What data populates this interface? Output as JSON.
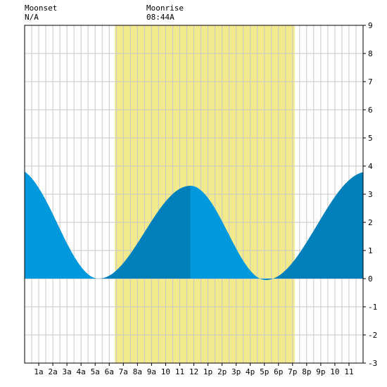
{
  "header": {
    "moonset_label": "Moonset",
    "moonset_value": "N/A",
    "moonrise_label": "Moonrise",
    "moonrise_value": "08:44A"
  },
  "colors": {
    "daylight": "#f2ea8c",
    "tide_light": "#0099dd",
    "tide_dark": "#0080bb",
    "grid": "#c8c8c8",
    "axis": "#000000"
  },
  "chart_data": {
    "type": "area",
    "title": "",
    "xlabel": "",
    "ylabel": "",
    "xlim": [
      0,
      24
    ],
    "ylim": [
      -3,
      9
    ],
    "y_ticks": [
      -3,
      -2,
      -1,
      0,
      1,
      2,
      3,
      4,
      5,
      6,
      7,
      8,
      9
    ],
    "x_tick_hours": [
      1,
      2,
      3,
      4,
      5,
      6,
      7,
      8,
      9,
      10,
      11,
      12,
      13,
      14,
      15,
      16,
      17,
      18,
      19,
      20,
      21,
      22,
      23
    ],
    "x_tick_labels": [
      "1a",
      "2a",
      "3a",
      "4a",
      "5a",
      "6a",
      "7a",
      "8a",
      "9a",
      "10",
      "11",
      "12",
      "1p",
      "2p",
      "3p",
      "4p",
      "5p",
      "6p",
      "7p",
      "8p",
      "9p",
      "10",
      "11"
    ],
    "daylight": {
      "start_hour": 6.4,
      "end_hour": 19.15
    },
    "extremes": [
      {
        "type": "high",
        "hour": -0.6,
        "value": 3.9
      },
      {
        "type": "low",
        "hour": 5.25,
        "value": 0.0
      },
      {
        "type": "high",
        "hour": 11.75,
        "value": 3.3
      },
      {
        "type": "low",
        "hour": 17.1,
        "value": -0.05
      },
      {
        "type": "high",
        "hour": 24.3,
        "value": 3.8
      }
    ],
    "series": [
      {
        "x": [
          0,
          1,
          2,
          3,
          4,
          5,
          6,
          7,
          8,
          9,
          10,
          11,
          12,
          13,
          14,
          15,
          16,
          17,
          18,
          19,
          20,
          21,
          22,
          23,
          24
        ],
        "values": [
          3.84,
          3.0,
          1.6,
          0.6,
          0.12,
          0.02,
          0.1,
          0.45,
          1.25,
          2.25,
          3.0,
          3.27,
          3.25,
          2.6,
          1.5,
          0.55,
          0.06,
          -0.05,
          0.22,
          0.6,
          1.15,
          1.9,
          2.75,
          3.45,
          3.78
        ]
      }
    ]
  }
}
